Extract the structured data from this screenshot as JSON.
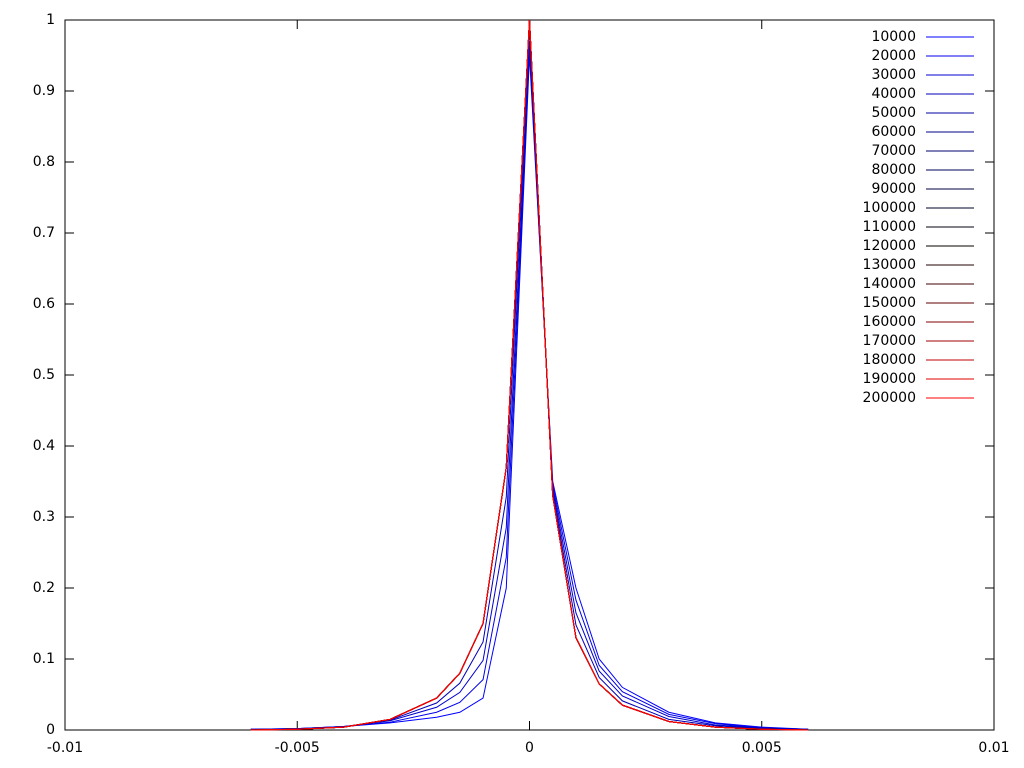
{
  "chart_data": {
    "type": "line",
    "x": [
      -0.006,
      -0.005,
      -0.004,
      -0.003,
      -0.002,
      -0.0015,
      -0.001,
      -0.0005,
      0,
      0.0005,
      0.001,
      0.0015,
      0.002,
      0.003,
      0.004,
      0.005,
      0.006
    ],
    "xlim": [
      -0.01,
      0.01
    ],
    "xticks": [
      -0.01,
      -0.005,
      0,
      0.005,
      0.01
    ],
    "ylim": [
      0,
      1
    ],
    "yticks": [
      0,
      0.1,
      0.2,
      0.3,
      0.4,
      0.5,
      0.6,
      0.7,
      0.8,
      0.9,
      1
    ],
    "grid": false,
    "legend": "top-right",
    "series": [
      {
        "name": "10000",
        "color": "#0000ff",
        "values": [
          0.001,
          0.002,
          0.005,
          0.01,
          0.018,
          0.025,
          0.045,
          0.2,
          0.95,
          0.35,
          0.2,
          0.1,
          0.06,
          0.025,
          0.01,
          0.004,
          0.001
        ]
      },
      {
        "name": "20000",
        "color": "#0000e8",
        "values": [
          0.001,
          0.002,
          0.005,
          0.011,
          0.025,
          0.039,
          0.071,
          0.243,
          0.96,
          0.345,
          0.183,
          0.091,
          0.054,
          0.022,
          0.009,
          0.003,
          0.001
        ]
      },
      {
        "name": "30000",
        "color": "#0000d0",
        "values": [
          0.001,
          0.002,
          0.005,
          0.013,
          0.032,
          0.053,
          0.098,
          0.285,
          0.97,
          0.34,
          0.165,
          0.083,
          0.048,
          0.019,
          0.007,
          0.003,
          0.001
        ]
      },
      {
        "name": "40000",
        "color": "#0000b8",
        "values": [
          0,
          0.001,
          0.004,
          0.014,
          0.038,
          0.066,
          0.124,
          0.328,
          0.99,
          0.335,
          0.148,
          0.074,
          0.041,
          0.015,
          0.006,
          0.002,
          0
        ]
      },
      {
        "name": "50000",
        "color": "#0000a0",
        "values": [
          0,
          0.001,
          0.004,
          0.015,
          0.045,
          0.08,
          0.15,
          0.37,
          1,
          0.33,
          0.13,
          0.065,
          0.035,
          0.012,
          0.004,
          0.001,
          0
        ]
      },
      {
        "name": "60000",
        "color": "#000088",
        "values": [
          0,
          0.001,
          0.004,
          0.015,
          0.045,
          0.08,
          0.15,
          0.37,
          1,
          0.33,
          0.13,
          0.065,
          0.035,
          0.012,
          0.004,
          0.001,
          0
        ]
      },
      {
        "name": "70000",
        "color": "#000070",
        "values": [
          0,
          0.001,
          0.004,
          0.015,
          0.045,
          0.08,
          0.15,
          0.37,
          1,
          0.33,
          0.13,
          0.065,
          0.035,
          0.012,
          0.004,
          0.001,
          0
        ]
      },
      {
        "name": "80000",
        "color": "#000058",
        "values": [
          0,
          0.001,
          0.004,
          0.015,
          0.045,
          0.08,
          0.15,
          0.37,
          1,
          0.33,
          0.13,
          0.065,
          0.035,
          0.012,
          0.004,
          0.001,
          0
        ]
      },
      {
        "name": "90000",
        "color": "#000040",
        "values": [
          0,
          0.001,
          0.004,
          0.015,
          0.045,
          0.08,
          0.15,
          0.37,
          1,
          0.33,
          0.13,
          0.065,
          0.035,
          0.012,
          0.004,
          0.001,
          0
        ]
      },
      {
        "name": "100000",
        "color": "#000028",
        "values": [
          0,
          0.001,
          0.004,
          0.015,
          0.045,
          0.08,
          0.15,
          0.37,
          1,
          0.33,
          0.13,
          0.065,
          0.035,
          0.012,
          0.004,
          0.001,
          0
        ]
      },
      {
        "name": "110000",
        "color": "#000010",
        "values": [
          0,
          0.001,
          0.004,
          0.015,
          0.045,
          0.08,
          0.15,
          0.37,
          1,
          0.33,
          0.13,
          0.065,
          0.035,
          0.012,
          0.004,
          0.001,
          0
        ]
      },
      {
        "name": "120000",
        "color": "#080000",
        "values": [
          0,
          0.001,
          0.004,
          0.015,
          0.045,
          0.08,
          0.15,
          0.37,
          1,
          0.33,
          0.13,
          0.065,
          0.035,
          0.012,
          0.004,
          0.001,
          0
        ]
      },
      {
        "name": "130000",
        "color": "#200000",
        "values": [
          0,
          0.001,
          0.004,
          0.015,
          0.045,
          0.08,
          0.15,
          0.37,
          1,
          0.33,
          0.13,
          0.065,
          0.035,
          0.012,
          0.004,
          0.001,
          0
        ]
      },
      {
        "name": "140000",
        "color": "#400000",
        "values": [
          0,
          0.001,
          0.004,
          0.015,
          0.045,
          0.08,
          0.15,
          0.37,
          1,
          0.33,
          0.13,
          0.065,
          0.035,
          0.012,
          0.004,
          0.001,
          0
        ]
      },
      {
        "name": "150000",
        "color": "#600000",
        "values": [
          0,
          0.001,
          0.004,
          0.015,
          0.045,
          0.08,
          0.15,
          0.37,
          1,
          0.33,
          0.13,
          0.065,
          0.035,
          0.012,
          0.004,
          0.001,
          0
        ]
      },
      {
        "name": "160000",
        "color": "#800000",
        "values": [
          0,
          0.001,
          0.004,
          0.015,
          0.045,
          0.08,
          0.15,
          0.37,
          1,
          0.33,
          0.13,
          0.065,
          0.035,
          0.012,
          0.004,
          0.001,
          0
        ]
      },
      {
        "name": "170000",
        "color": "#a00000",
        "values": [
          0,
          0.001,
          0.004,
          0.015,
          0.045,
          0.08,
          0.15,
          0.37,
          1,
          0.33,
          0.13,
          0.065,
          0.035,
          0.012,
          0.004,
          0.001,
          0
        ]
      },
      {
        "name": "180000",
        "color": "#c00000",
        "values": [
          0,
          0.001,
          0.004,
          0.015,
          0.045,
          0.08,
          0.15,
          0.37,
          1,
          0.33,
          0.13,
          0.065,
          0.035,
          0.012,
          0.004,
          0.001,
          0
        ]
      },
      {
        "name": "190000",
        "color": "#e00000",
        "values": [
          0,
          0.001,
          0.004,
          0.015,
          0.045,
          0.08,
          0.15,
          0.37,
          1,
          0.33,
          0.13,
          0.065,
          0.035,
          0.012,
          0.004,
          0.001,
          0
        ]
      },
      {
        "name": "200000",
        "color": "#ff0000",
        "values": [
          0,
          0.001,
          0.004,
          0.015,
          0.045,
          0.08,
          0.15,
          0.37,
          1,
          0.33,
          0.13,
          0.065,
          0.035,
          0.012,
          0.004,
          0.001,
          0
        ]
      }
    ]
  }
}
